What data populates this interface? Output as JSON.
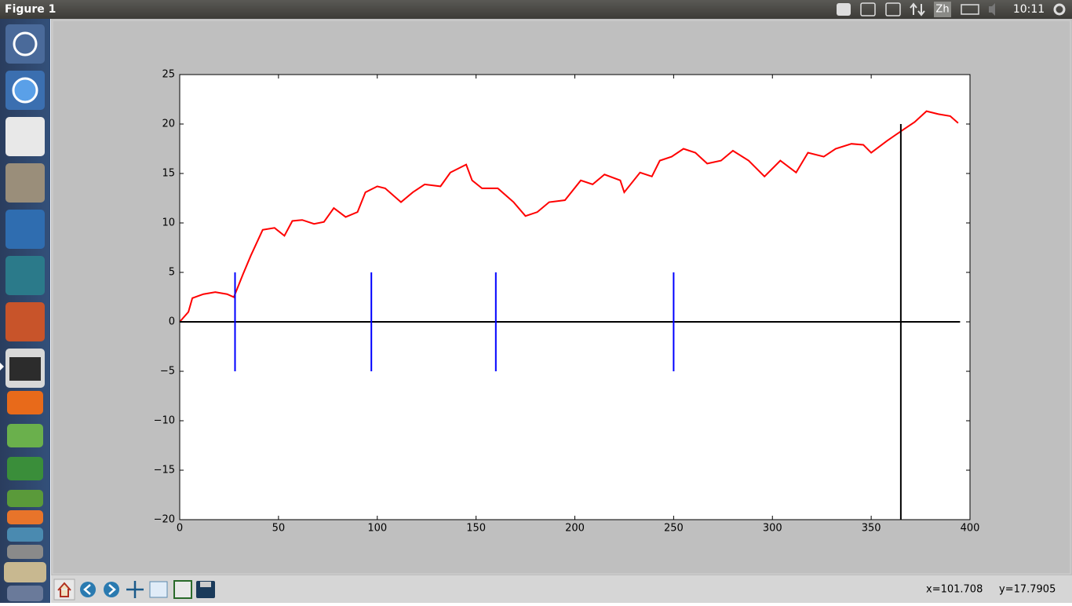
{
  "topbar": {
    "title": "Figure 1",
    "input_method": "Zh",
    "clock": "10:11"
  },
  "status": {
    "x": "x=101.708",
    "y": "y=17.7905"
  },
  "chart_data": {
    "type": "line",
    "xlim": [
      0,
      400
    ],
    "ylim": [
      -20,
      25
    ],
    "xticks": [
      0,
      50,
      100,
      150,
      200,
      250,
      300,
      350,
      400
    ],
    "yticks": [
      {
        "value": -20,
        "label": "−20"
      },
      {
        "value": -15,
        "label": "−15"
      },
      {
        "value": -10,
        "label": "−10"
      },
      {
        "value": -5,
        "label": "−5"
      },
      0,
      5,
      10,
      15,
      20,
      25
    ],
    "series": [
      {
        "color": "#ff0000",
        "x": [
          0,
          4.4,
          6.4,
          12,
          18,
          24,
          27.4,
          32,
          36,
          42,
          48,
          53,
          57,
          62,
          68,
          73,
          78,
          84,
          90,
          94,
          100,
          104,
          112,
          118,
          124,
          132,
          137,
          145,
          148,
          153,
          161,
          169,
          175,
          181,
          187,
          195,
          203,
          209,
          215,
          223,
          225,
          233,
          239,
          243,
          249,
          255,
          261,
          267,
          274,
          280,
          288,
          296,
          304,
          312,
          318,
          326,
          332,
          340,
          346,
          350,
          358,
          366,
          372,
          378,
          384,
          390,
          394
        ],
        "values": [
          0,
          1,
          2.4,
          2.8,
          3,
          2.8,
          2.5,
          4.8,
          6.7,
          9.3,
          9.5,
          8.7,
          10.2,
          10.3,
          9.9,
          10.1,
          11.5,
          10.6,
          11.1,
          13.1,
          13.7,
          13.5,
          12.1,
          13.1,
          13.9,
          13.7,
          15.1,
          15.9,
          14.3,
          13.5,
          13.5,
          12.1,
          10.7,
          11.1,
          12.1,
          12.3,
          14.3,
          13.9,
          14.9,
          14.3,
          13.1,
          15.1,
          14.7,
          16.3,
          16.7,
          17.5,
          17.1,
          16,
          16.3,
          17.3,
          16.3,
          14.7,
          16.3,
          15.1,
          17.1,
          16.7,
          17.5,
          18,
          17.9,
          17.1,
          18.3,
          19.4,
          20.2,
          21.3,
          21,
          20.8,
          20.1
        ]
      },
      {
        "color": "#000000",
        "x": [
          0,
          395
        ],
        "values": [
          0,
          0
        ]
      },
      {
        "color": "#000000",
        "x": [
          365,
          365
        ],
        "values": [
          -20,
          20
        ]
      },
      {
        "color": "#0000ff",
        "x": [
          28,
          28
        ],
        "values": [
          -5,
          5
        ]
      },
      {
        "color": "#0000ff",
        "x": [
          97,
          97
        ],
        "values": [
          -5,
          5
        ]
      },
      {
        "color": "#0000ff",
        "x": [
          160,
          160
        ],
        "values": [
          -5,
          5
        ]
      },
      {
        "color": "#0000ff",
        "x": [
          250,
          250
        ],
        "values": [
          -5,
          5
        ]
      }
    ]
  }
}
